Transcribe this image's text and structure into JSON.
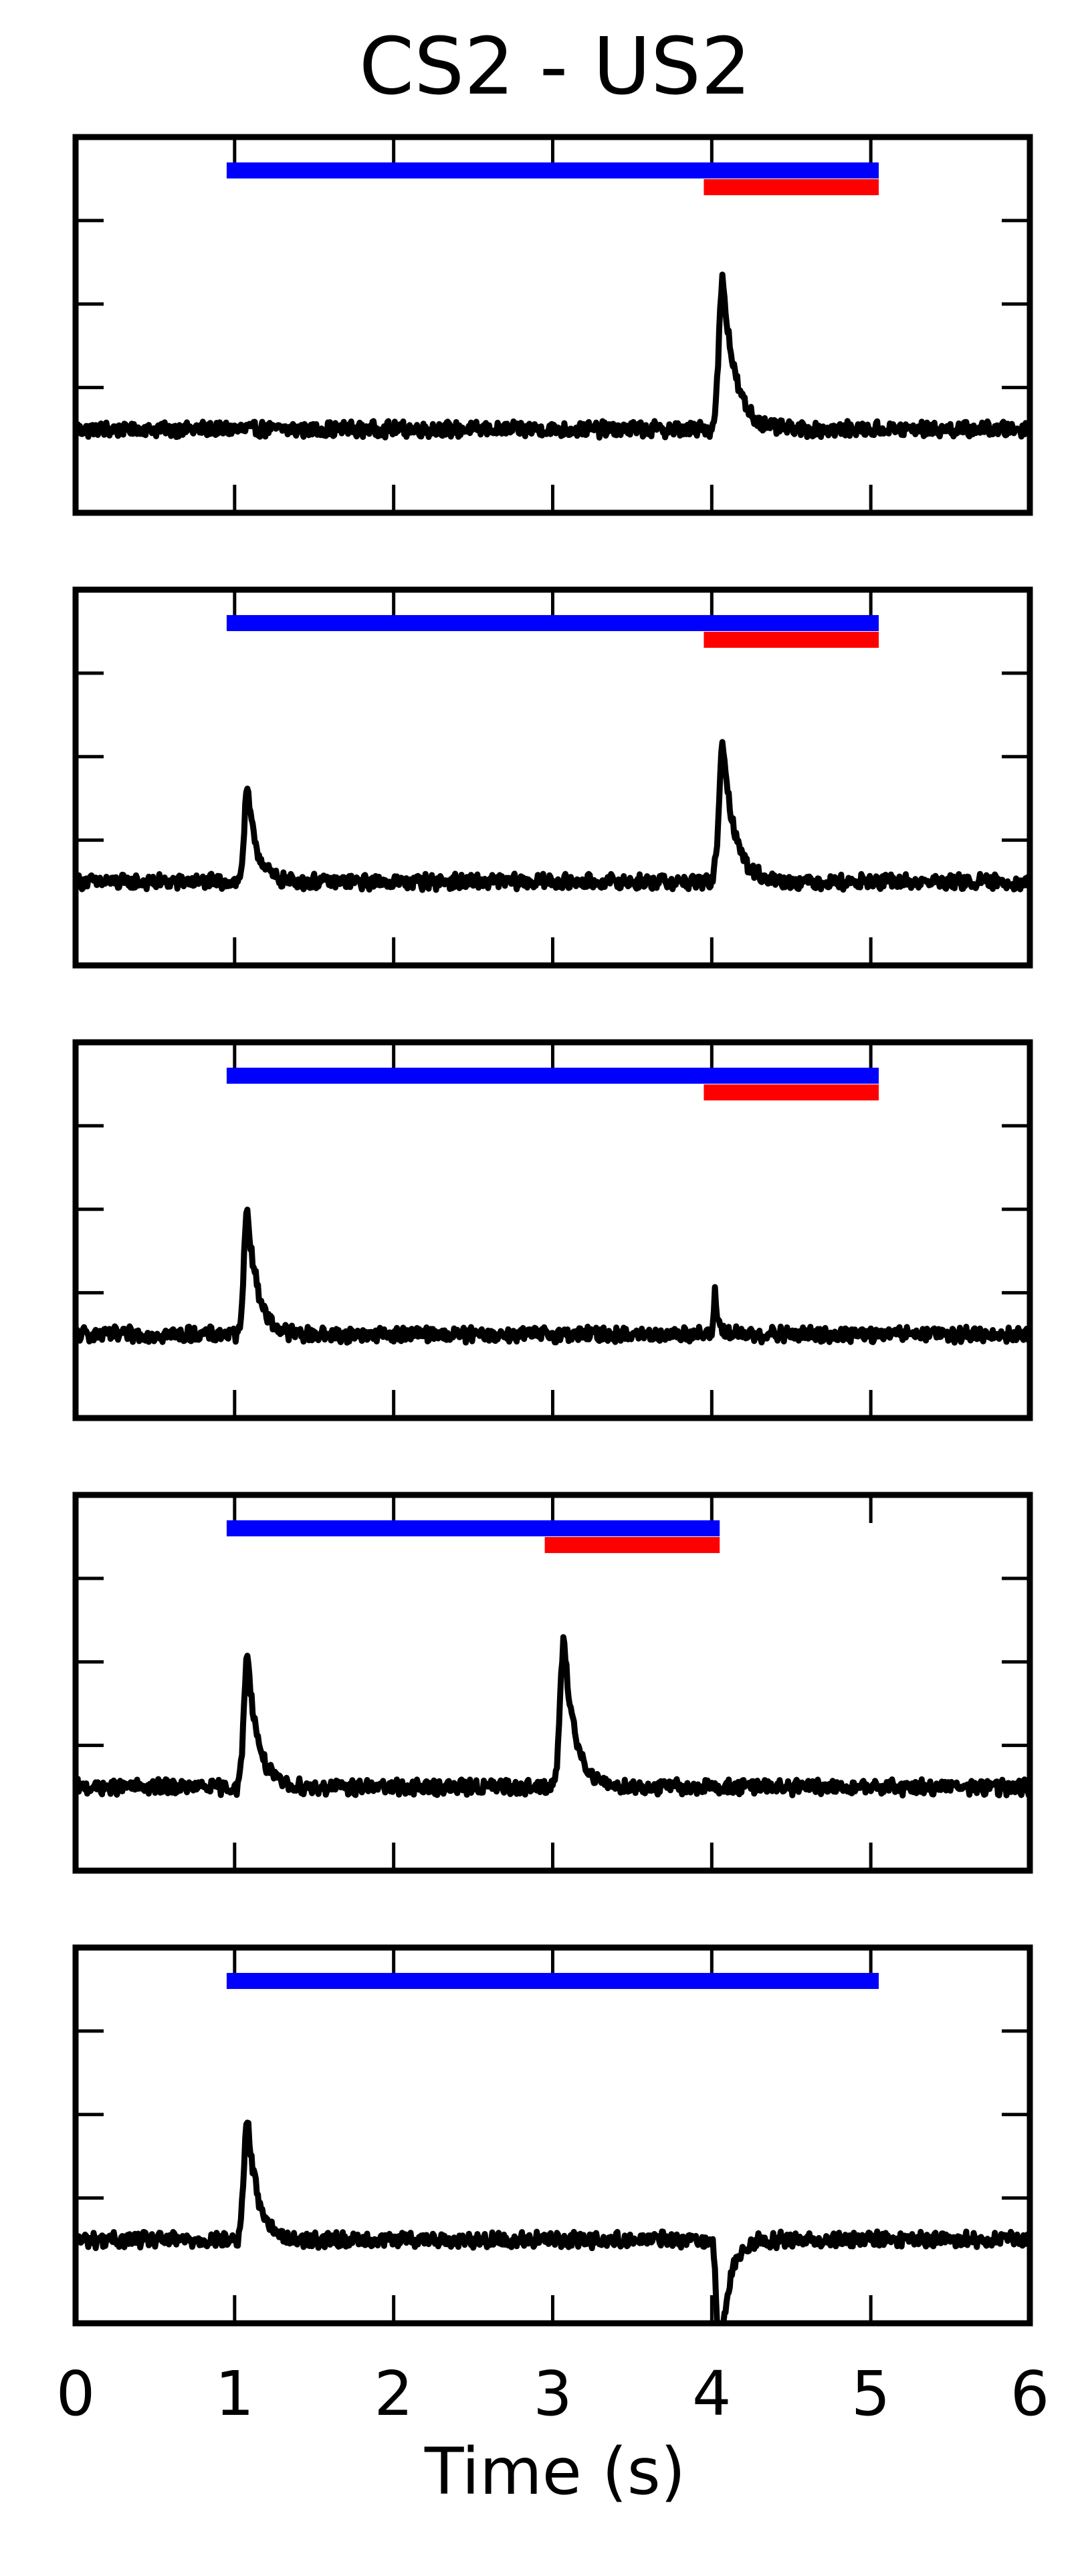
{
  "chart_data": {
    "type": "line",
    "title": "CS2 - US2",
    "xlabel": "Time (s)",
    "ylabel": "",
    "xlim": [
      0,
      6
    ],
    "ylim": [
      -1.0,
      3.5
    ],
    "x_ticks": [
      "0",
      "1",
      "2",
      "3",
      "4",
      "5",
      "6"
    ],
    "y_ticks": [
      0.5,
      1.5,
      2.5
    ],
    "grid": false,
    "legend": "none",
    "colors": {
      "cs_bar": "#0000ff",
      "us_bar": "#ff0000",
      "trace": "#000000"
    },
    "panels": [
      {
        "cs_bar": {
          "start": 0.95,
          "end": 5.05,
          "level": 3.1
        },
        "us_bar": {
          "start": 3.95,
          "end": 5.05,
          "level": 2.9
        },
        "peaks": [
          {
            "t": 4.07,
            "amplitude": 1.8,
            "width": 0.07
          }
        ]
      },
      {
        "cs_bar": {
          "start": 0.95,
          "end": 5.05,
          "level": 3.1
        },
        "us_bar": {
          "start": 3.95,
          "end": 5.05,
          "level": 2.9
        },
        "peaks": [
          {
            "t": 1.08,
            "amplitude": 1.1,
            "width": 0.055
          },
          {
            "t": 4.07,
            "amplitude": 1.6,
            "width": 0.07
          }
        ]
      },
      {
        "cs_bar": {
          "start": 0.95,
          "end": 5.05,
          "level": 3.1
        },
        "us_bar": {
          "start": 3.95,
          "end": 5.05,
          "level": 2.9
        },
        "peaks": [
          {
            "t": 1.08,
            "amplitude": 1.5,
            "width": 0.06
          },
          {
            "t": 4.02,
            "amplitude": 0.5,
            "width": 0.02
          }
        ]
      },
      {
        "cs_bar": {
          "start": 0.95,
          "end": 4.05,
          "level": 3.1
        },
        "us_bar": {
          "start": 2.95,
          "end": 4.05,
          "level": 2.9
        },
        "peaks": [
          {
            "t": 1.08,
            "amplitude": 1.6,
            "width": 0.06
          },
          {
            "t": 3.07,
            "amplitude": 1.75,
            "width": 0.065
          }
        ]
      },
      {
        "cs_bar": {
          "start": 0.95,
          "end": 5.05,
          "level": 3.1
        },
        "us_bar": null,
        "peaks": [
          {
            "t": 1.08,
            "amplitude": 1.45,
            "width": 0.06
          },
          {
            "t": 4.05,
            "amplitude": -1.6,
            "width": 0.05
          }
        ]
      }
    ]
  }
}
